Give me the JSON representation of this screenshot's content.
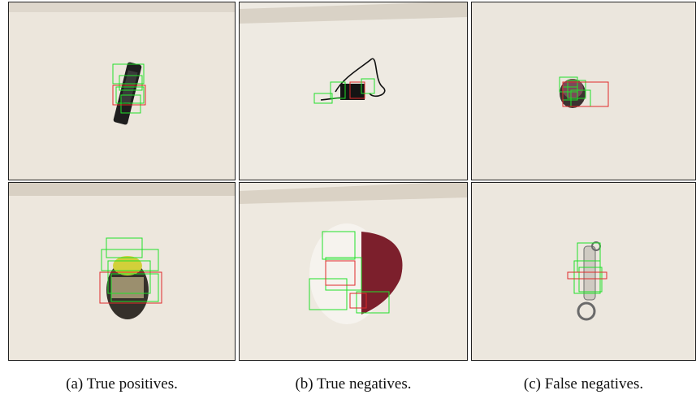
{
  "figure": {
    "columns": [
      {
        "caption": "(a) True positives.",
        "panels": [
          {
            "object": "remote-control",
            "detections": "green-and-red-boxes"
          },
          {
            "object": "jar",
            "detections": "green-and-red-boxes"
          }
        ]
      },
      {
        "caption": "(b) True negatives.",
        "panels": [
          {
            "object": "power-adapter",
            "detections": "green-and-red-boxes"
          },
          {
            "object": "baseball-cap",
            "detections": "green-and-red-boxes"
          }
        ]
      },
      {
        "caption": "(c) False negatives.",
        "panels": [
          {
            "object": "small-round-object",
            "detections": "green-and-red-boxes"
          },
          {
            "object": "keychain",
            "detections": "green-and-red-boxes"
          }
        ]
      }
    ],
    "colors": {
      "background": "#ece7de",
      "border": "#222222",
      "positive_box": "#22e02a",
      "negative_box": "#e02a2a"
    }
  }
}
